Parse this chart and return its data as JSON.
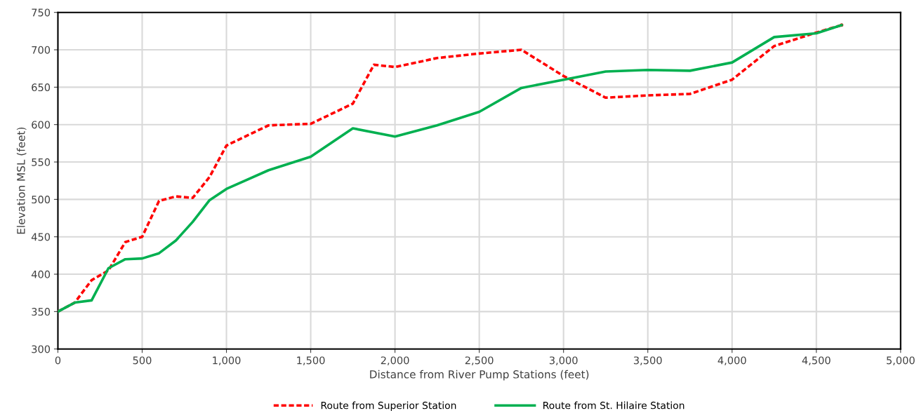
{
  "chart_data": {
    "type": "line",
    "xlabel": "Distance from River Pump Stations (feet)",
    "ylabel": "Elevation MSL (feet)",
    "xlim": [
      0,
      5000
    ],
    "ylim": [
      300,
      750
    ],
    "xticks": [
      0,
      500,
      {
        "value": 1000,
        "label": "1,000"
      },
      {
        "value": 1500,
        "label": "1,500"
      },
      {
        "value": 2000,
        "label": "2,000"
      },
      {
        "value": 2500,
        "label": "2,500"
      },
      {
        "value": 3000,
        "label": "3,000"
      },
      {
        "value": 3500,
        "label": "3,500"
      },
      {
        "value": 4000,
        "label": "4,000"
      },
      {
        "value": 4500,
        "label": "4,500"
      },
      {
        "value": 5000,
        "label": "5,000"
      }
    ],
    "yticks": [
      300,
      350,
      400,
      450,
      500,
      550,
      600,
      650,
      700,
      750
    ],
    "grid": true,
    "legend": "bottom",
    "marker": "none",
    "series": [
      {
        "name": "Route from Superior Station",
        "color": "#ff0000",
        "line_style": "dashed",
        "x": [
          0,
          100,
          200,
          300,
          400,
          500,
          600,
          700,
          800,
          900,
          1000,
          1250,
          1500,
          1750,
          1875,
          2000,
          2250,
          2500,
          2750,
          3000,
          3250,
          3500,
          3750,
          4000,
          4250,
          4500,
          4650
        ],
        "values": [
          350,
          362,
          392,
          405,
          443,
          450,
          498,
          504,
          502,
          530,
          572,
          599,
          601,
          628,
          680,
          677,
          689,
          695,
          700,
          665,
          636,
          639,
          641,
          660,
          705,
          723,
          733
        ]
      },
      {
        "name": "Route from St. Hilaire Station",
        "color": "#00b050",
        "line_style": "solid",
        "x": [
          0,
          100,
          200,
          300,
          400,
          500,
          600,
          700,
          800,
          900,
          1000,
          1250,
          1500,
          1750,
          2000,
          2250,
          2500,
          2750,
          3000,
          3250,
          3500,
          3750,
          4000,
          4250,
          4500,
          4650
        ],
        "values": [
          350,
          362,
          365,
          408,
          420,
          421,
          428,
          445,
          470,
          499,
          514,
          539,
          557,
          595,
          584,
          599,
          617,
          649,
          660,
          671,
          673,
          672,
          683,
          717,
          722,
          733
        ]
      }
    ]
  }
}
